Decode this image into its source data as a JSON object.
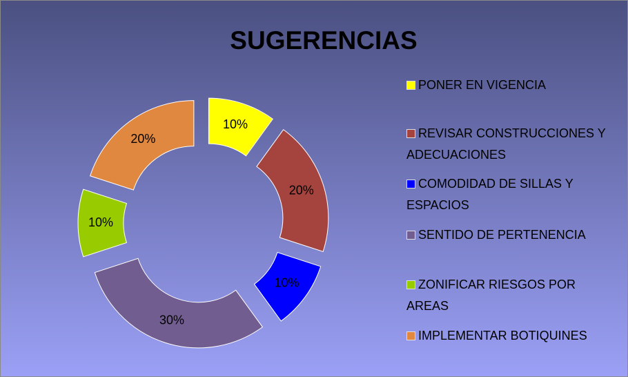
{
  "chart_data": {
    "type": "donut",
    "title": "SUGERENCIAS",
    "categories": [
      "PONER EN VIGENCIA",
      "REVISAR CONSTRUCCIONES Y ADECUACIONES",
      "COMODIDAD DE SILLAS Y ESPACIOS",
      "SENTIDO DE PERTENENCIA",
      "ZONIFICAR RIESGOS POR AREAS",
      "IMPLEMENTAR BOTIQUINES"
    ],
    "values": [
      10,
      20,
      10,
      30,
      10,
      20
    ],
    "value_labels": [
      "10%",
      "20%",
      "10%",
      "30%",
      "10%",
      "20%"
    ],
    "colors": [
      "#ffff00",
      "#a5433f",
      "#0000ff",
      "#725d90",
      "#99cc00",
      "#e0883f"
    ],
    "legend": "right"
  }
}
